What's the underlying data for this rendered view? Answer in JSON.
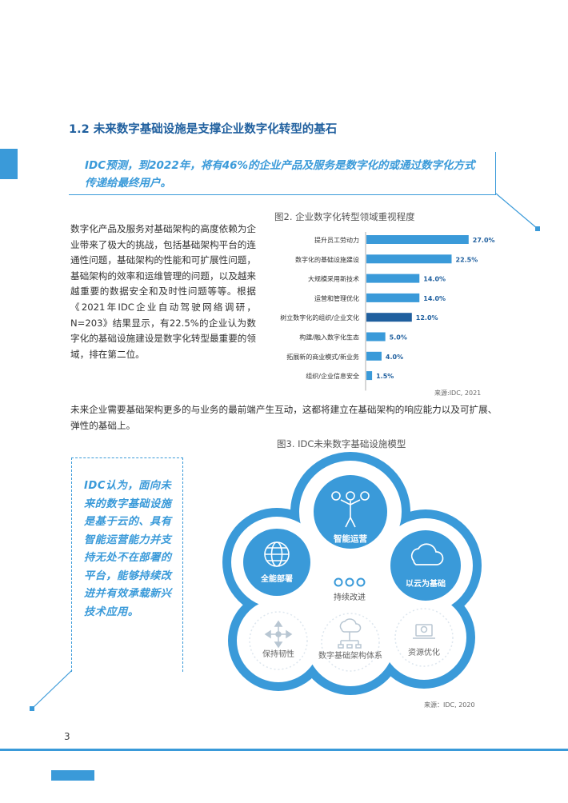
{
  "section_title": "1.2 未来数字基础设施是支撑企业数字化转型的基石",
  "quote": "IDC预测，到2022年，将有46%的企业产品及服务是数字化的或通过数字化方式传递给最终用户。",
  "paragraph1": "数字化产品及服务对基础架构的高度依赖为企业带来了极大的挑战，包括基础架构平台的连通性问题，基础架构的性能和可扩展性问题，基础架构的效率和运维管理的问题，以及越来越重要的数据安全和及时性问题等等。根据《2021年IDC企业自动驾驶网络调研，N=203》结果显示，有22.5%的企业认为数字化的基础设施建设是数字化转型最重要的领域，排在第二位。",
  "paragraph2": "未来企业需要基础架构更多的与业务的最前端产生互动，这都将建立在基础架构的响应能力以及可扩展、弹性的基础上。",
  "fig2_title": "图2. 企业数字化转型领域重视程度",
  "fig2_source": "来源:IDC, 2021",
  "chart_data": {
    "type": "bar",
    "orientation": "horizontal",
    "categories": [
      "提升员工劳动力",
      "数字化的基础设施建设",
      "大规模采用新技术",
      "运营和管理优化",
      "树立数字化的组织/企业文化",
      "构建/融入数字化生态",
      "拓展新的商业模式/新业务",
      "组织/企业信息安全"
    ],
    "values": [
      27.0,
      22.5,
      14.0,
      14.0,
      12.0,
      5.0,
      4.0,
      1.5
    ],
    "value_labels": [
      "27.0%",
      "22.5%",
      "14.0%",
      "14.0%",
      "12.0%",
      "5.0%",
      "4.0%",
      "1.5%"
    ],
    "unit": "%",
    "xlim": [
      0,
      30
    ],
    "grid": false,
    "colors": [
      "#3a9ad9",
      "#3a9ad9",
      "#3a9ad9",
      "#3a9ad9",
      "#1f5f9e",
      "#3a9ad9",
      "#3a9ad9",
      "#3a9ad9"
    ]
  },
  "fig3_title": "图3. IDC未来数字基础设施模型",
  "fig3_source": "来源：IDC, 2020",
  "side_quote": "IDC认为，面向未来的数字基础设施是基于云的、具有智能运营能力并支持无处不在部署的平台，能够持续改进并有效承载新兴技术应用。",
  "model": {
    "center_label": "持续改进",
    "nodes": [
      {
        "label": "智能运营",
        "icon": "gears-person-icon"
      },
      {
        "label": "全能部署",
        "icon": "globe-icon"
      },
      {
        "label": "以云为基础",
        "icon": "cloud-icon"
      },
      {
        "label": "保持韧性",
        "icon": "arrows-cross-icon"
      },
      {
        "label": "数字基础架构体系",
        "icon": "cloud-network-icon"
      },
      {
        "label": "资源优化",
        "icon": "laptop-gear-icon"
      }
    ]
  },
  "colors": {
    "accent": "#3a9ad9",
    "dark_accent": "#1f5f9e"
  },
  "page_number": "3"
}
